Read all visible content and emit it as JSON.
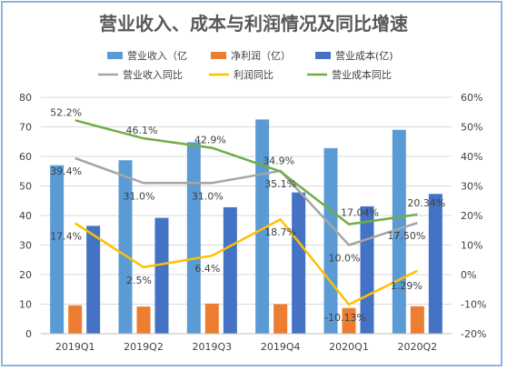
{
  "chart_data": {
    "type": "bar",
    "title": "营业收入、成本与利润情况及同比增速",
    "categories": [
      "2019Q1",
      "2019Q2",
      "2019Q3",
      "2019Q4",
      "2020Q1",
      "2020Q2"
    ],
    "left_axis": {
      "ylim": [
        0,
        80
      ],
      "ticks": [
        "0",
        "10",
        "20",
        "30",
        "40",
        "50",
        "60",
        "70",
        "80"
      ]
    },
    "right_axis": {
      "ylim": [
        -20,
        60
      ],
      "ticks": [
        "-20%",
        "-10%",
        "0%",
        "10%",
        "20%",
        "30%",
        "40%",
        "50%",
        "60%"
      ]
    },
    "bar_series": [
      {
        "name": "营业收入（亿",
        "color": "#5b9bd5",
        "values": [
          57,
          58.7,
          64.8,
          72.5,
          62.8,
          69
        ]
      },
      {
        "name": "净利润（亿）",
        "color": "#ed7d31",
        "values": [
          9.6,
          9.2,
          10.2,
          10,
          8.7,
          9.3
        ]
      },
      {
        "name": "营业成本(亿)",
        "color": "#4472c4",
        "values": [
          36.5,
          39.2,
          42.8,
          47.8,
          43.1,
          47.3
        ]
      }
    ],
    "line_series": [
      {
        "name": "营业收入同比",
        "color": "#a5a5a5",
        "values": [
          39.4,
          31.0,
          31.0,
          35.1,
          10.0,
          17.5
        ],
        "labels": [
          "39.4%",
          "31.0%",
          "31.0%",
          "35.1%",
          "10.0%",
          "17.50%"
        ]
      },
      {
        "name": "利润同比",
        "color": "#ffc000",
        "values": [
          17.4,
          2.5,
          6.4,
          18.7,
          -10.13,
          1.29
        ],
        "labels": [
          "17.4%",
          "2.5%",
          "6.4%",
          "18.7%",
          "-10.13%",
          "1.29%"
        ]
      },
      {
        "name": "营业成本同比",
        "color": "#70ad47",
        "values": [
          52.2,
          46.1,
          42.9,
          34.9,
          17.04,
          20.34
        ],
        "labels": [
          "52.2%",
          "46.1%",
          "42.9%",
          "34.9%",
          "17.04%",
          "20.34%"
        ]
      }
    ],
    "grid": true,
    "legend_position": "top"
  }
}
